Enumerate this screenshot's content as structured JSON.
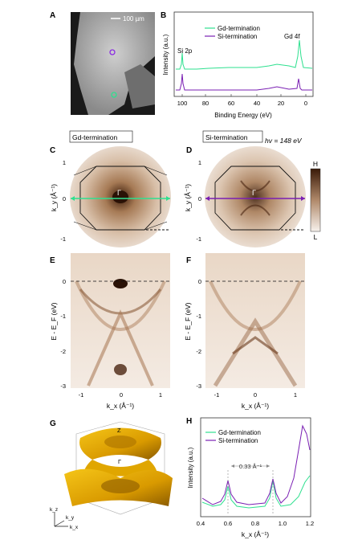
{
  "panels": {
    "A": "A",
    "B": "B",
    "C": "C",
    "D": "D",
    "E": "E",
    "F": "F",
    "G": "G",
    "H": "H"
  },
  "panelA": {
    "scale_label": "100 µm"
  },
  "panelB": {
    "ylabel": "Intensity (a.u.)",
    "xlabel": "Binding Energy (eV)",
    "peak_si": "Si 2p",
    "peak_gd": "Gd 4f",
    "ticks": [
      "100",
      "80",
      "60",
      "40",
      "20",
      "0"
    ],
    "legend": [
      {
        "name": "Gd-termination",
        "color": "#2ee08f"
      },
      {
        "name": "Si-termination",
        "color": "#7a1fb3"
      }
    ]
  },
  "panelC": {
    "box_label": "Gd-termination",
    "gamma": "Γ",
    "ylabel": "k_y (Å⁻¹)",
    "yticks": [
      "1",
      "0",
      "-1"
    ]
  },
  "panelD": {
    "box_label": "Si-termination",
    "photon": "hv = 148 eV",
    "gamma": "Γ",
    "ylabel": "k_y (Å⁻¹)",
    "yticks": [
      "1",
      "0",
      "-1"
    ]
  },
  "colorbar": {
    "high": "H",
    "low": "L"
  },
  "panelE": {
    "ylabel": "E - E_F (eV)",
    "yticks": [
      "0",
      "-1",
      "-2",
      "-3"
    ],
    "xticks": [
      "-1",
      "0",
      "1"
    ],
    "xlabel": "k_x (Å⁻¹)"
  },
  "panelF": {
    "ylabel": "E - E_F (eV)",
    "yticks": [
      "0",
      "-1",
      "-2",
      "-3"
    ],
    "xticks": [
      "-1",
      "0",
      "1"
    ],
    "xlabel": "k_x (Å⁻¹)"
  },
  "panelG": {
    "gamma": "Γ",
    "z": "Z",
    "axes": [
      "k_z",
      "k_y",
      "k_x"
    ]
  },
  "panelH": {
    "ylabel": "Intensity (a.u.)",
    "xlabel": "k_x (Å⁻¹)",
    "xticks": [
      "0.4",
      "0.6",
      "0.8",
      "1.0",
      "1.2"
    ],
    "spacing": "0.33 Å⁻¹",
    "legend": [
      {
        "name": "Gd-termination",
        "color": "#2ee08f"
      },
      {
        "name": "Si-termination",
        "color": "#7a1fb3"
      }
    ]
  }
}
